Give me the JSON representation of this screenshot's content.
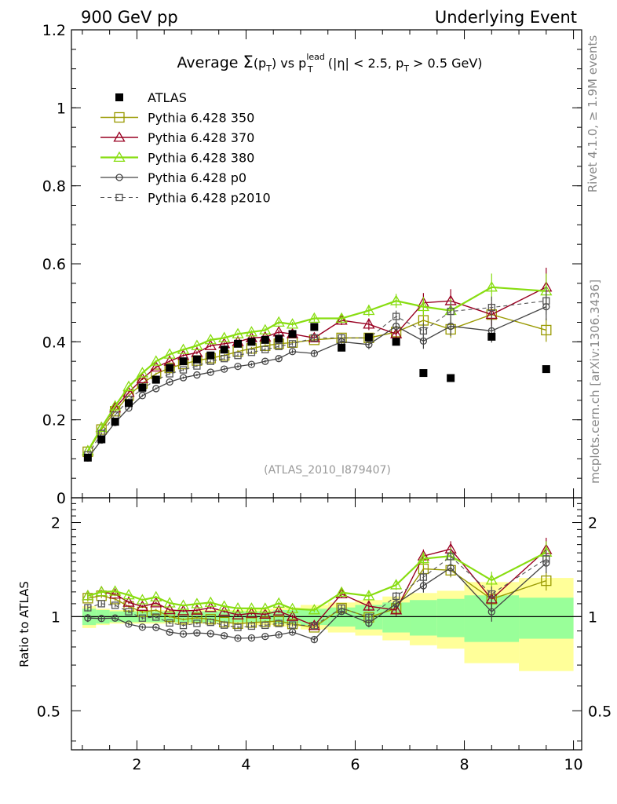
{
  "header": {
    "left": "900 GeV pp",
    "right": "Underlying Event"
  },
  "side_labels": {
    "rivet": "Rivet 4.1.0, ≥ 1.9M events",
    "mcplots": "mcplots.cern.ch [arXiv:1306.3436]"
  },
  "chart_data": {
    "type": "scatter",
    "title": {
      "prefix": "Average ",
      "sigma": "Σ",
      "arg": "(p",
      "arg_sub": "T",
      "arg_close": ")",
      "vs": " vs p",
      "lead_sup": "lead",
      "lead_sub": "T",
      "cuts": " (|η| < 2.5, p",
      "cuts_sub": "T",
      "cuts_end": " > 0.5 GeV)"
    },
    "watermark": "(ATLAS_2010_I879407)",
    "ratio_ylabel": "Ratio to ATLAS",
    "main_ylim": [
      0,
      1.2
    ],
    "ratio_ylim": [
      0.375,
      2.4
    ],
    "xlim": [
      0.8,
      10.15
    ],
    "main_yticks": [
      {
        "v": 0,
        "label": "0"
      },
      {
        "v": 0.2,
        "label": "0.2"
      },
      {
        "v": 0.4,
        "label": "0.4"
      },
      {
        "v": 0.6,
        "label": "0.6"
      },
      {
        "v": 0.8,
        "label": "0.8"
      },
      {
        "v": 1.0,
        "label": "1"
      },
      {
        "v": 1.2,
        "label": "1.2"
      }
    ],
    "ratio_yticks": [
      {
        "v": 0.5,
        "label": "0.5"
      },
      {
        "v": 1,
        "label": "1"
      },
      {
        "v": 2,
        "label": "2"
      }
    ],
    "xticks": [
      {
        "v": 2,
        "label": "2"
      },
      {
        "v": 4,
        "label": "4"
      },
      {
        "v": 6,
        "label": "6"
      },
      {
        "v": 8,
        "label": "8"
      },
      {
        "v": 10,
        "label": "10"
      }
    ],
    "x": [
      1.1,
      1.35,
      1.6,
      1.85,
      2.1,
      2.35,
      2.6,
      2.85,
      3.1,
      3.35,
      3.6,
      3.85,
      4.1,
      4.35,
      4.6,
      4.85,
      5.25,
      5.75,
      6.25,
      6.75,
      7.25,
      7.75,
      8.5,
      9.5
    ],
    "bin_edges": [
      1.0,
      1.25,
      1.5,
      1.75,
      2.0,
      2.25,
      2.5,
      2.75,
      3.0,
      3.25,
      3.5,
      3.75,
      4.0,
      4.25,
      4.5,
      4.75,
      5.0,
      5.5,
      6.0,
      6.5,
      7.0,
      7.5,
      8.0,
      9.0,
      10.0
    ],
    "band_yellow": [
      0.08,
      0.06,
      0.05,
      0.05,
      0.05,
      0.05,
      0.05,
      0.05,
      0.05,
      0.05,
      0.05,
      0.05,
      0.06,
      0.06,
      0.07,
      0.07,
      0.09,
      0.11,
      0.13,
      0.16,
      0.19,
      0.21,
      0.29,
      0.33,
      0.35
    ],
    "band_green": [
      0.06,
      0.05,
      0.04,
      0.04,
      0.04,
      0.04,
      0.04,
      0.04,
      0.04,
      0.04,
      0.04,
      0.04,
      0.04,
      0.04,
      0.05,
      0.05,
      0.06,
      0.07,
      0.09,
      0.11,
      0.13,
      0.14,
      0.17,
      0.15,
      0.17
    ],
    "atlas": [
      0.103,
      0.15,
      0.195,
      0.243,
      0.283,
      0.303,
      0.333,
      0.35,
      0.355,
      0.365,
      0.38,
      0.395,
      0.4,
      0.405,
      0.408,
      0.42,
      0.438,
      0.385,
      0.412,
      0.4,
      0.32,
      0.307,
      0.413,
      0.33
    ],
    "series": [
      {
        "name": "Pythia 6.428 350",
        "color": "#999900",
        "marker": "square-open",
        "dash": "",
        "size": 12,
        "width": 1.4,
        "values": [
          0.118,
          0.175,
          0.222,
          0.262,
          0.293,
          0.318,
          0.333,
          0.343,
          0.352,
          0.358,
          0.365,
          0.375,
          0.383,
          0.39,
          0.395,
          0.398,
          0.405,
          0.41,
          0.41,
          0.425,
          0.455,
          0.432,
          0.47,
          0.43
        ],
        "errors": [
          0.003,
          0.003,
          0.003,
          0.003,
          0.003,
          0.003,
          0.003,
          0.003,
          0.003,
          0.003,
          0.004,
          0.004,
          0.004,
          0.004,
          0.005,
          0.005,
          0.006,
          0.01,
          0.012,
          0.015,
          0.02,
          0.022,
          0.025,
          0.03
        ]
      },
      {
        "name": "Pythia 6.428 370",
        "color": "#990022",
        "marker": "triangle-open",
        "dash": "",
        "size": 13,
        "width": 1.4,
        "values": [
          0.12,
          0.18,
          0.23,
          0.27,
          0.305,
          0.335,
          0.35,
          0.365,
          0.372,
          0.39,
          0.395,
          0.4,
          0.41,
          0.412,
          0.425,
          0.42,
          0.41,
          0.455,
          0.445,
          0.42,
          0.5,
          0.505,
          0.47,
          0.54
        ],
        "errors": [
          0.003,
          0.003,
          0.003,
          0.003,
          0.003,
          0.003,
          0.003,
          0.003,
          0.004,
          0.004,
          0.004,
          0.004,
          0.005,
          0.005,
          0.006,
          0.006,
          0.008,
          0.012,
          0.015,
          0.018,
          0.025,
          0.03,
          0.03,
          0.05
        ]
      },
      {
        "name": "Pythia 6.428 380",
        "color": "#88dd11",
        "marker": "triangle-open",
        "dash": "",
        "size": 13,
        "width": 2.2,
        "values": [
          0.12,
          0.18,
          0.235,
          0.285,
          0.32,
          0.35,
          0.368,
          0.38,
          0.39,
          0.405,
          0.41,
          0.42,
          0.425,
          0.43,
          0.45,
          0.445,
          0.46,
          0.46,
          0.48,
          0.505,
          0.49,
          0.48,
          0.54,
          0.53
        ],
        "errors": [
          0.003,
          0.003,
          0.003,
          0.003,
          0.003,
          0.003,
          0.003,
          0.003,
          0.004,
          0.004,
          0.004,
          0.004,
          0.005,
          0.005,
          0.006,
          0.006,
          0.008,
          0.012,
          0.015,
          0.018,
          0.025,
          0.03,
          0.035,
          0.045
        ]
      },
      {
        "name": "Pythia 6.428 p0",
        "color": "#444444",
        "marker": "circle-open",
        "dash": "",
        "size": 8,
        "width": 1.3,
        "values": [
          0.102,
          0.148,
          0.193,
          0.23,
          0.262,
          0.28,
          0.297,
          0.308,
          0.315,
          0.322,
          0.33,
          0.337,
          0.342,
          0.35,
          0.357,
          0.375,
          0.37,
          0.4,
          0.393,
          0.44,
          0.402,
          0.44,
          0.428,
          0.49
        ],
        "errors": [
          0.003,
          0.003,
          0.003,
          0.003,
          0.003,
          0.003,
          0.003,
          0.003,
          0.003,
          0.003,
          0.004,
          0.004,
          0.004,
          0.004,
          0.005,
          0.005,
          0.006,
          0.01,
          0.012,
          0.015,
          0.02,
          0.025,
          0.03,
          0.035
        ]
      },
      {
        "name": "Pythia 6.428 p2010",
        "color": "#555555",
        "marker": "square-open",
        "dash": "5,4",
        "size": 8,
        "width": 1.1,
        "values": [
          0.11,
          0.165,
          0.212,
          0.252,
          0.28,
          0.302,
          0.318,
          0.328,
          0.338,
          0.35,
          0.357,
          0.365,
          0.373,
          0.38,
          0.388,
          0.395,
          0.41,
          0.41,
          0.41,
          0.465,
          0.428,
          0.478,
          0.488,
          0.505
        ],
        "errors": [
          0.003,
          0.003,
          0.003,
          0.003,
          0.003,
          0.003,
          0.003,
          0.003,
          0.003,
          0.003,
          0.004,
          0.004,
          0.004,
          0.004,
          0.005,
          0.005,
          0.006,
          0.01,
          0.012,
          0.015,
          0.02,
          0.025,
          0.028,
          0.035
        ]
      }
    ],
    "legend": [
      {
        "label": "ATLAS",
        "key": "atlas"
      },
      {
        "label": "Pythia 6.428 350",
        "key": "s0"
      },
      {
        "label": "Pythia 6.428 370",
        "key": "s1"
      },
      {
        "label": "Pythia 6.428 380",
        "key": "s2"
      },
      {
        "label": "Pythia 6.428 p0",
        "key": "s3"
      },
      {
        "label": "Pythia 6.428 p2010",
        "key": "s4"
      }
    ]
  }
}
